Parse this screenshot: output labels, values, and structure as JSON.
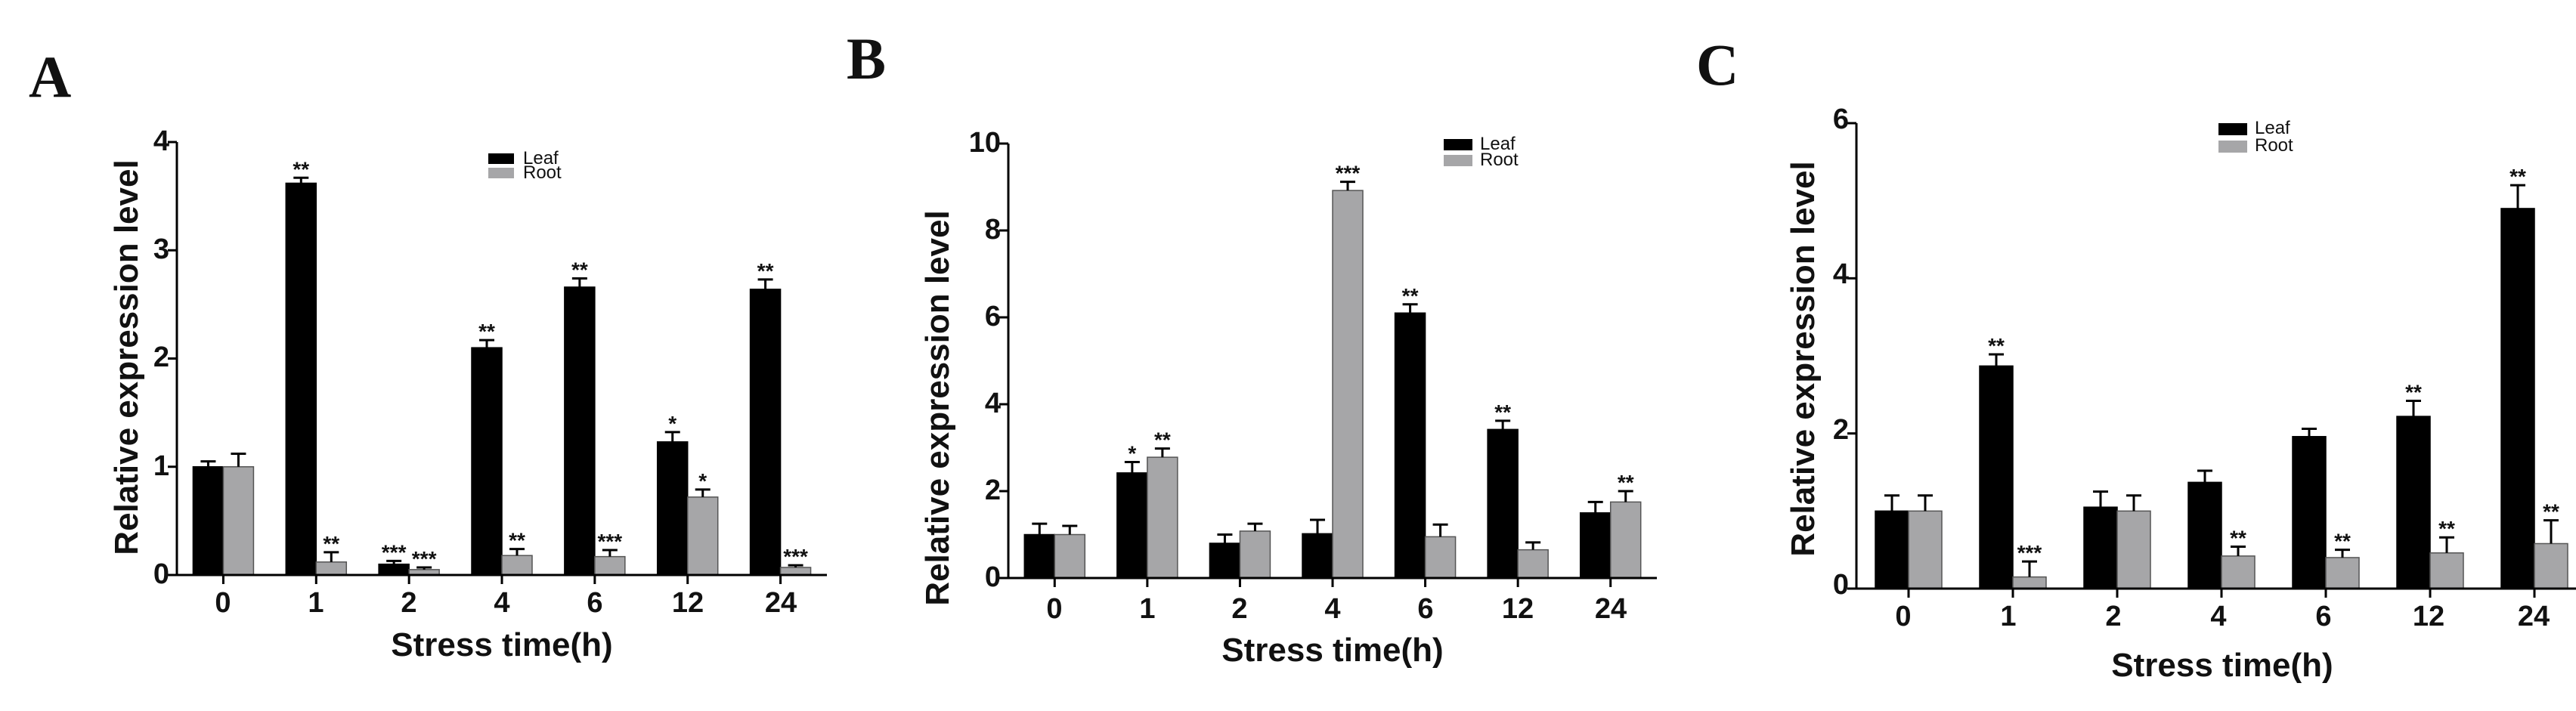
{
  "chart_data": [
    {
      "panel_label": "A",
      "type": "bar",
      "categories": [
        "0",
        "1",
        "2",
        "4",
        "6",
        "12",
        "24"
      ],
      "ylim": [
        0,
        4
      ],
      "yticks": [
        "0",
        "1",
        "2",
        "3",
        "4"
      ],
      "xlabel": "Stress time(h)",
      "ylabel": "Relative expression level",
      "legend": "top-center",
      "series": [
        {
          "name": "Leaf",
          "color": "#000000",
          "values": [
            1.0,
            3.62,
            0.1,
            2.1,
            2.66,
            1.23,
            2.64
          ],
          "errors": [
            0.05,
            0.05,
            0.03,
            0.07,
            0.08,
            0.09,
            0.09
          ],
          "sig": [
            "",
            "**",
            "***",
            "**",
            "**",
            "*",
            "**"
          ]
        },
        {
          "name": "Root",
          "color": "#a6a6a8",
          "values": [
            1.0,
            0.12,
            0.05,
            0.18,
            0.17,
            0.72,
            0.07
          ],
          "errors": [
            0.12,
            0.09,
            0.02,
            0.06,
            0.06,
            0.07,
            0.02
          ],
          "sig": [
            "",
            "**",
            "***",
            "**",
            "***",
            "*",
            "***"
          ]
        }
      ]
    },
    {
      "panel_label": "B",
      "type": "bar",
      "categories": [
        "0",
        "1",
        "2",
        "4",
        "6",
        "12",
        "24"
      ],
      "ylim": [
        0,
        10
      ],
      "yticks": [
        "0",
        "2",
        "4",
        "6",
        "8",
        "10"
      ],
      "xlabel": "Stress time(h)",
      "ylabel": "Relative expression level",
      "legend": "top-right",
      "series": [
        {
          "name": "Leaf",
          "color": "#000000",
          "values": [
            1.0,
            2.42,
            0.8,
            1.02,
            6.1,
            3.42,
            1.5
          ],
          "errors": [
            0.25,
            0.25,
            0.2,
            0.32,
            0.2,
            0.2,
            0.25
          ],
          "sig": [
            "",
            "*",
            "",
            "",
            "**",
            "**",
            ""
          ]
        },
        {
          "name": "Root",
          "color": "#a6a6a8",
          "values": [
            1.0,
            2.78,
            1.08,
            8.92,
            0.95,
            0.65,
            1.75
          ],
          "errors": [
            0.2,
            0.2,
            0.17,
            0.2,
            0.28,
            0.17,
            0.25
          ],
          "sig": [
            "",
            "**",
            "",
            "***",
            "",
            "",
            "**"
          ]
        }
      ]
    },
    {
      "panel_label": "C",
      "type": "bar",
      "categories": [
        "0",
        "1",
        "2",
        "4",
        "6",
        "12",
        "24"
      ],
      "ylim": [
        0,
        6
      ],
      "yticks": [
        "0",
        "2",
        "4",
        "6"
      ],
      "xlabel": "Stress time(h)",
      "ylabel": "Relative expression level",
      "legend": "top-center",
      "series": [
        {
          "name": "Leaf",
          "color": "#000000",
          "values": [
            1.0,
            2.87,
            1.05,
            1.37,
            1.96,
            2.22,
            4.9
          ],
          "errors": [
            0.2,
            0.15,
            0.2,
            0.15,
            0.1,
            0.2,
            0.3
          ],
          "sig": [
            "",
            "**",
            "",
            "",
            "",
            "**",
            "**"
          ]
        },
        {
          "name": "Root",
          "color": "#a6a6a8",
          "values": [
            1.0,
            0.15,
            1.0,
            0.42,
            0.4,
            0.46,
            0.58
          ],
          "errors": [
            0.2,
            0.2,
            0.2,
            0.12,
            0.1,
            0.2,
            0.3
          ],
          "sig": [
            "",
            "***",
            "",
            "**",
            "**",
            "**",
            "**"
          ]
        }
      ]
    }
  ]
}
